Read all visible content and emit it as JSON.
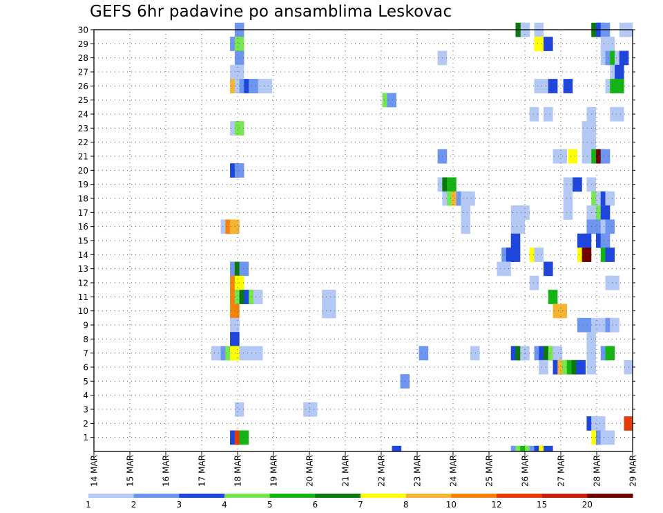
{
  "chart_data": {
    "type": "heatmap",
    "title": "GEFS 6hr padavine po ansamblima Leskovac",
    "xlabel": "",
    "ylabel": "",
    "x_tick_labels": [
      "14 MAR",
      "15 MAR",
      "16 MAR",
      "17 MAR",
      "18 MAR",
      "19 MAR",
      "20 MAR",
      "21 MAR",
      "22 MAR",
      "23 MAR",
      "24 MAR",
      "25 MAR",
      "26 MAR",
      "27 MAR",
      "28 MAR",
      "29 MAR"
    ],
    "xlim_days": [
      14,
      29
    ],
    "y_tick_labels": [
      "1",
      "2",
      "3",
      "4",
      "5",
      "6",
      "7",
      "8",
      "9",
      "10",
      "11",
      "12",
      "13",
      "14",
      "15",
      "16",
      "17",
      "18",
      "19",
      "20",
      "21",
      "22",
      "23",
      "24",
      "25",
      "26",
      "27",
      "28",
      "29",
      "30"
    ],
    "ylim_members": [
      0,
      30
    ],
    "grid": true,
    "legend_position": "bottom",
    "levels": [
      {
        "label": "1",
        "color": "#b4c8f5"
      },
      {
        "label": "2",
        "color": "#6e96f0"
      },
      {
        "label": "3",
        "color": "#1e46dc"
      },
      {
        "label": "4",
        "color": "#78e650"
      },
      {
        "label": "5",
        "color": "#14b414"
      },
      {
        "label": "6",
        "color": "#0a780a"
      },
      {
        "label": "7",
        "color": "#ffff00"
      },
      {
        "label": "8",
        "color": "#f5b432"
      },
      {
        "label": "10",
        "color": "#f5820a"
      },
      {
        "label": "12",
        "color": "#e63c0a"
      },
      {
        "label": "15",
        "color": "#c81e0a"
      },
      {
        "label": "20",
        "color": "#6e0000"
      }
    ],
    "cells": [
      {
        "m": 30,
        "d": 17.92,
        "c": 1
      },
      {
        "m": 30,
        "d": 27.85,
        "c": 5
      },
      {
        "m": 30,
        "d": 27.98,
        "c": 2
      },
      {
        "m": 30,
        "d": 28.11,
        "c": 1
      },
      {
        "m": 30,
        "d": 28.63,
        "c": 0
      },
      {
        "m": 30,
        "d": 28.76,
        "c": 0
      },
      {
        "m": 30,
        "d": 25.74,
        "c": 5
      },
      {
        "m": 30,
        "d": 25.88,
        "c": 0
      },
      {
        "m": 30,
        "d": 26.26,
        "c": 0
      },
      {
        "m": 29,
        "d": 17.79,
        "c": 1
      },
      {
        "m": 29,
        "d": 17.92,
        "c": 3
      },
      {
        "m": 29,
        "d": 26.26,
        "c": 6
      },
      {
        "m": 29,
        "d": 26.52,
        "c": 2
      },
      {
        "m": 29,
        "d": 28.11,
        "c": 0
      },
      {
        "m": 29,
        "d": 28.24,
        "c": 0
      },
      {
        "m": 28,
        "d": 17.92,
        "c": 1
      },
      {
        "m": 28,
        "d": 23.57,
        "c": 0
      },
      {
        "m": 28,
        "d": 28.11,
        "c": 0
      },
      {
        "m": 28,
        "d": 28.24,
        "c": 1
      },
      {
        "m": 28,
        "d": 28.37,
        "c": 4
      },
      {
        "m": 28,
        "d": 28.5,
        "c": 0
      },
      {
        "m": 28,
        "d": 28.63,
        "c": 2
      },
      {
        "m": 27,
        "d": 17.79,
        "c": 0
      },
      {
        "m": 27,
        "d": 17.92,
        "c": 0
      },
      {
        "m": 27,
        "d": 28.37,
        "c": 0
      },
      {
        "m": 27,
        "d": 28.5,
        "c": 2
      },
      {
        "m": 26,
        "d": 17.79,
        "c": 7
      },
      {
        "m": 26,
        "d": 17.92,
        "c": 0
      },
      {
        "m": 26,
        "d": 18.05,
        "c": 1
      },
      {
        "m": 26,
        "d": 18.18,
        "c": 2
      },
      {
        "m": 26,
        "d": 18.31,
        "c": 1
      },
      {
        "m": 26,
        "d": 18.44,
        "c": 1
      },
      {
        "m": 26,
        "d": 18.57,
        "c": 0
      },
      {
        "m": 26,
        "d": 18.7,
        "c": 0
      },
      {
        "m": 26,
        "d": 26.26,
        "c": 0
      },
      {
        "m": 26,
        "d": 26.39,
        "c": 0
      },
      {
        "m": 26,
        "d": 26.65,
        "c": 2
      },
      {
        "m": 26,
        "d": 27.07,
        "c": 2
      },
      {
        "m": 26,
        "d": 28.24,
        "c": 0
      },
      {
        "m": 26,
        "d": 28.37,
        "c": 4
      },
      {
        "m": 26,
        "d": 28.5,
        "c": 4
      },
      {
        "m": 25,
        "d": 22.03,
        "c": 3
      },
      {
        "m": 25,
        "d": 22.16,
        "c": 1
      },
      {
        "m": 24,
        "d": 26.13,
        "c": 0
      },
      {
        "m": 24,
        "d": 26.52,
        "c": 0
      },
      {
        "m": 24,
        "d": 27.72,
        "c": 0
      },
      {
        "m": 24,
        "d": 28.37,
        "c": 0
      },
      {
        "m": 24,
        "d": 28.5,
        "c": 0
      },
      {
        "m": 23,
        "d": 17.79,
        "c": 0
      },
      {
        "m": 23,
        "d": 17.92,
        "c": 3
      },
      {
        "m": 23,
        "d": 27.59,
        "c": 0
      },
      {
        "m": 23,
        "d": 27.72,
        "c": 0
      },
      {
        "m": 22,
        "d": 27.59,
        "c": 0
      },
      {
        "m": 22,
        "d": 27.72,
        "c": 0
      },
      {
        "m": 21,
        "d": 23.57,
        "c": 1
      },
      {
        "m": 21,
        "d": 26.78,
        "c": 0
      },
      {
        "m": 21,
        "d": 26.91,
        "c": 0
      },
      {
        "m": 21,
        "d": 27.2,
        "c": 6
      },
      {
        "m": 21,
        "d": 27.59,
        "c": 0
      },
      {
        "m": 21,
        "d": 27.85,
        "c": 4
      },
      {
        "m": 21,
        "d": 27.98,
        "c": 11
      },
      {
        "m": 21,
        "d": 28.11,
        "c": 1
      },
      {
        "m": 20,
        "d": 17.79,
        "c": 2
      },
      {
        "m": 20,
        "d": 17.92,
        "c": 1
      },
      {
        "m": 19,
        "d": 23.57,
        "c": 0
      },
      {
        "m": 19,
        "d": 23.7,
        "c": 5
      },
      {
        "m": 19,
        "d": 23.83,
        "c": 4
      },
      {
        "m": 19,
        "d": 27.07,
        "c": 0
      },
      {
        "m": 19,
        "d": 27.33,
        "c": 2
      },
      {
        "m": 19,
        "d": 27.72,
        "c": 0
      },
      {
        "m": 18,
        "d": 23.7,
        "c": 0
      },
      {
        "m": 18,
        "d": 23.83,
        "c": 3
      },
      {
        "m": 18,
        "d": 23.96,
        "c": 7
      },
      {
        "m": 18,
        "d": 24.09,
        "c": 1
      },
      {
        "m": 18,
        "d": 24.22,
        "c": 0
      },
      {
        "m": 18,
        "d": 24.35,
        "c": 0
      },
      {
        "m": 18,
        "d": 27.07,
        "c": 0
      },
      {
        "m": 18,
        "d": 27.85,
        "c": 3
      },
      {
        "m": 18,
        "d": 27.98,
        "c": 0
      },
      {
        "m": 18,
        "d": 28.11,
        "c": 2
      },
      {
        "m": 18,
        "d": 28.24,
        "c": 0
      },
      {
        "m": 17,
        "d": 24.22,
        "c": 0
      },
      {
        "m": 17,
        "d": 25.61,
        "c": 0
      },
      {
        "m": 17,
        "d": 25.74,
        "c": 0
      },
      {
        "m": 17,
        "d": 25.87,
        "c": 0
      },
      {
        "m": 17,
        "d": 27.07,
        "c": 0
      },
      {
        "m": 17,
        "d": 27.72,
        "c": 0
      },
      {
        "m": 17,
        "d": 27.98,
        "c": 3
      },
      {
        "m": 17,
        "d": 28.11,
        "c": 2
      },
      {
        "m": 16,
        "d": 17.53,
        "c": 0
      },
      {
        "m": 16,
        "d": 17.66,
        "c": 8
      },
      {
        "m": 16,
        "d": 17.79,
        "c": 7
      },
      {
        "m": 16,
        "d": 24.22,
        "c": 0
      },
      {
        "m": 16,
        "d": 25.61,
        "c": 0
      },
      {
        "m": 16,
        "d": 25.74,
        "c": 0
      },
      {
        "m": 16,
        "d": 27.72,
        "c": 1
      },
      {
        "m": 16,
        "d": 27.85,
        "c": 1
      },
      {
        "m": 16,
        "d": 27.98,
        "c": 1
      },
      {
        "m": 16,
        "d": 28.11,
        "c": 0
      },
      {
        "m": 16,
        "d": 28.24,
        "c": 1
      },
      {
        "m": 15,
        "d": 25.61,
        "c": 2
      },
      {
        "m": 15,
        "d": 27.46,
        "c": 2
      },
      {
        "m": 15,
        "d": 27.59,
        "c": 2
      },
      {
        "m": 15,
        "d": 27.98,
        "c": 2
      },
      {
        "m": 15,
        "d": 28.11,
        "c": 1
      },
      {
        "m": 14,
        "d": 25.35,
        "c": 1
      },
      {
        "m": 14,
        "d": 25.48,
        "c": 2
      },
      {
        "m": 14,
        "d": 25.61,
        "c": 2
      },
      {
        "m": 14,
        "d": 26.13,
        "c": 6
      },
      {
        "m": 14,
        "d": 26.26,
        "c": 0
      },
      {
        "m": 14,
        "d": 27.46,
        "c": 6
      },
      {
        "m": 14,
        "d": 27.59,
        "c": 11
      },
      {
        "m": 14,
        "d": 28.11,
        "c": 4
      },
      {
        "m": 14,
        "d": 28.24,
        "c": 2
      },
      {
        "m": 13,
        "d": 17.79,
        "c": 1
      },
      {
        "m": 13,
        "d": 17.92,
        "c": 5
      },
      {
        "m": 13,
        "d": 18.05,
        "c": 1
      },
      {
        "m": 13,
        "d": 25.22,
        "c": 0
      },
      {
        "m": 13,
        "d": 25.35,
        "c": 0
      },
      {
        "m": 13,
        "d": 26.52,
        "c": 2
      },
      {
        "m": 12,
        "d": 17.79,
        "c": 8
      },
      {
        "m": 12,
        "d": 17.92,
        "c": 6
      },
      {
        "m": 12,
        "d": 26.13,
        "c": 0
      },
      {
        "m": 12,
        "d": 28.24,
        "c": 0
      },
      {
        "m": 12,
        "d": 28.37,
        "c": 0
      },
      {
        "m": 11,
        "d": 17.79,
        "c": 8
      },
      {
        "m": 11,
        "d": 17.92,
        "c": 3
      },
      {
        "m": 11,
        "d": 18.05,
        "c": 5
      },
      {
        "m": 11,
        "d": 18.18,
        "c": 2
      },
      {
        "m": 11,
        "d": 18.31,
        "c": 3
      },
      {
        "m": 11,
        "d": 18.44,
        "c": 0
      },
      {
        "m": 11,
        "d": 20.35,
        "c": 0
      },
      {
        "m": 11,
        "d": 20.48,
        "c": 0
      },
      {
        "m": 11,
        "d": 26.65,
        "c": 4
      },
      {
        "m": 10,
        "d": 17.79,
        "c": 8
      },
      {
        "m": 10,
        "d": 20.35,
        "c": 0
      },
      {
        "m": 10,
        "d": 20.48,
        "c": 0
      },
      {
        "m": 10,
        "d": 26.78,
        "c": 7
      },
      {
        "m": 10,
        "d": 26.91,
        "c": 7
      },
      {
        "m": 9,
        "d": 17.79,
        "c": 0
      },
      {
        "m": 9,
        "d": 27.46,
        "c": 1
      },
      {
        "m": 9,
        "d": 27.59,
        "c": 1
      },
      {
        "m": 9,
        "d": 27.85,
        "c": 0
      },
      {
        "m": 9,
        "d": 28.11,
        "c": 0
      },
      {
        "m": 9,
        "d": 28.24,
        "c": 1
      },
      {
        "m": 9,
        "d": 28.37,
        "c": 0
      },
      {
        "m": 8,
        "d": 17.79,
        "c": 2
      },
      {
        "m": 8,
        "d": 27.72,
        "c": 0
      },
      {
        "m": 7,
        "d": 17.27,
        "c": 0
      },
      {
        "m": 7,
        "d": 17.4,
        "c": 0
      },
      {
        "m": 7,
        "d": 17.53,
        "c": 1
      },
      {
        "m": 7,
        "d": 17.66,
        "c": 3
      },
      {
        "m": 7,
        "d": 17.79,
        "c": 6
      },
      {
        "m": 7,
        "d": 17.92,
        "c": 6
      },
      {
        "m": 7,
        "d": 18.05,
        "c": 0
      },
      {
        "m": 7,
        "d": 18.18,
        "c": 0
      },
      {
        "m": 7,
        "d": 18.44,
        "c": 0
      },
      {
        "m": 7,
        "d": 23.05,
        "c": 1
      },
      {
        "m": 7,
        "d": 24.48,
        "c": 0
      },
      {
        "m": 7,
        "d": 25.61,
        "c": 2
      },
      {
        "m": 7,
        "d": 25.74,
        "c": 5
      },
      {
        "m": 7,
        "d": 25.87,
        "c": 0
      },
      {
        "m": 7,
        "d": 26.26,
        "c": 1
      },
      {
        "m": 7,
        "d": 26.39,
        "c": 2
      },
      {
        "m": 7,
        "d": 26.52,
        "c": 5
      },
      {
        "m": 7,
        "d": 26.65,
        "c": 3
      },
      {
        "m": 7,
        "d": 26.78,
        "c": 0
      },
      {
        "m": 7,
        "d": 27.72,
        "c": 0
      },
      {
        "m": 7,
        "d": 28.11,
        "c": 1
      },
      {
        "m": 7,
        "d": 28.24,
        "c": 4
      },
      {
        "m": 6,
        "d": 26.39,
        "c": 0
      },
      {
        "m": 6,
        "d": 26.78,
        "c": 2
      },
      {
        "m": 6,
        "d": 26.91,
        "c": 7
      },
      {
        "m": 6,
        "d": 27.04,
        "c": 3
      },
      {
        "m": 6,
        "d": 27.17,
        "c": 4
      },
      {
        "m": 6,
        "d": 27.3,
        "c": 5
      },
      {
        "m": 6,
        "d": 27.43,
        "c": 2
      },
      {
        "m": 6,
        "d": 27.72,
        "c": 0
      },
      {
        "m": 6,
        "d": 28.76,
        "c": 0
      },
      {
        "m": 5,
        "d": 22.53,
        "c": 1
      },
      {
        "m": 3,
        "d": 17.92,
        "c": 0
      },
      {
        "m": 3,
        "d": 19.83,
        "c": 0
      },
      {
        "m": 3,
        "d": 19.96,
        "c": 0
      },
      {
        "m": 2,
        "d": 27.72,
        "c": 2
      },
      {
        "m": 2,
        "d": 27.85,
        "c": 0
      },
      {
        "m": 2,
        "d": 27.98,
        "c": 0
      },
      {
        "m": 2,
        "d": 28.76,
        "c": 9
      },
      {
        "m": 1,
        "d": 17.79,
        "c": 2
      },
      {
        "m": 1,
        "d": 17.92,
        "c": 9
      },
      {
        "m": 1,
        "d": 18.05,
        "c": 4
      },
      {
        "m": 1,
        "d": 27.85,
        "c": 6
      },
      {
        "m": 1,
        "d": 27.98,
        "c": 1
      },
      {
        "m": 1,
        "d": 28.11,
        "c": 0
      },
      {
        "m": 1,
        "d": 28.24,
        "c": 0
      },
      {
        "m": 0,
        "d": 22.3,
        "c": 2
      },
      {
        "m": 0,
        "d": 25.61,
        "c": 1
      },
      {
        "m": 0,
        "d": 25.74,
        "c": 3
      },
      {
        "m": 0,
        "d": 25.87,
        "c": 4
      },
      {
        "m": 0,
        "d": 26.0,
        "c": 3
      },
      {
        "m": 0,
        "d": 26.13,
        "c": 1
      },
      {
        "m": 0,
        "d": 26.26,
        "c": 2
      },
      {
        "m": 0,
        "d": 26.39,
        "c": 6
      },
      {
        "m": 0,
        "d": 26.52,
        "c": 2
      }
    ]
  }
}
